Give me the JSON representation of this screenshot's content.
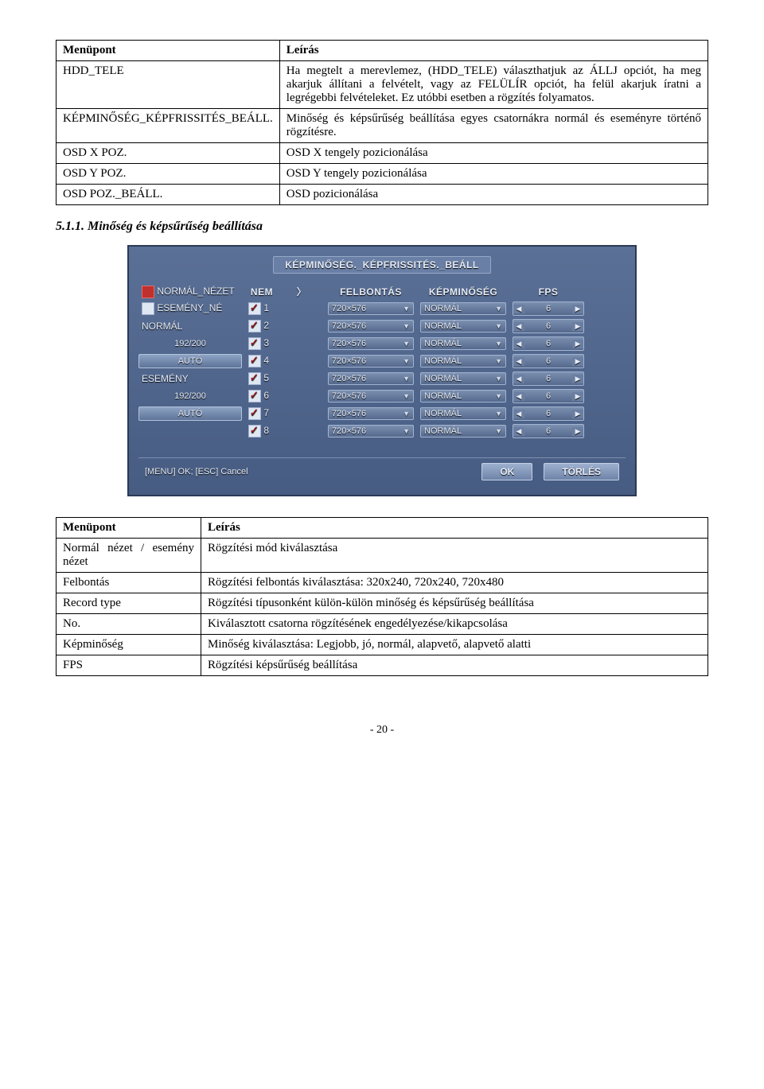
{
  "table1": {
    "headers": [
      "Menüpont",
      "Leírás"
    ],
    "rows": [
      [
        "HDD_TELE",
        "Ha megtelt a merevlemez, (HDD_TELE) választhatjuk az ÁLLJ opciót, ha meg akarjuk állítani a felvételt, vagy az FELÜLÍR opciót, ha felül akarjuk íratni a legrégebbi felvételeket. Ez utóbbi esetben a rögzítés folyamatos."
      ],
      [
        "KÉPMINŐSÉG_KÉPFRISSITÉS_BEÁLL.",
        "Minőség és képsűrűség beállítása egyes csatornákra normál és eseményre történő rögzítésre."
      ],
      [
        "OSD X POZ.",
        "OSD X tengely pozicionálása"
      ],
      [
        "OSD Y POZ.",
        "OSD Y tengely pozicionálása"
      ],
      [
        "OSD POZ._BEÁLL.",
        "OSD pozicionálása"
      ]
    ]
  },
  "section_heading": "5.1.1. Minőség és képsűrűség beállítása",
  "screenshot": {
    "title": "KÉPMINŐSÉG._KÉPFRISSITÉS._BEÁLL",
    "side": {
      "normal_view": "NORMÁL_NÉZET",
      "event_view": "ESEMÉNY_NÉ",
      "normal_label": "NORMÁL",
      "normal_count": "192/200",
      "auto1": "AUTÓ",
      "event_label": "ESEMÉNY",
      "event_count": "192/200",
      "auto2": "AUTÓ"
    },
    "headers": {
      "nem": "NEM",
      "felbontas": "FELBONTÁS",
      "kepminoseg": "KÉPMINŐSÉG",
      "fps": "FPS"
    },
    "rows": [
      {
        "n": "1",
        "res": "720×576",
        "q": "NORMÁL",
        "fps": "6"
      },
      {
        "n": "2",
        "res": "720×576",
        "q": "NORMÁL",
        "fps": "6"
      },
      {
        "n": "3",
        "res": "720×576",
        "q": "NORMÁL",
        "fps": "6"
      },
      {
        "n": "4",
        "res": "720×576",
        "q": "NORMÁL",
        "fps": "6"
      },
      {
        "n": "5",
        "res": "720×576",
        "q": "NORMÁL",
        "fps": "6"
      },
      {
        "n": "6",
        "res": "720×576",
        "q": "NORMÁL",
        "fps": "6"
      },
      {
        "n": "7",
        "res": "720×576",
        "q": "NORMÁL",
        "fps": "6"
      },
      {
        "n": "8",
        "res": "720×576",
        "q": "NORMÁL",
        "fps": "6"
      }
    ],
    "hint": "[MENU] OK; [ESC] Cancel",
    "ok": "OK",
    "cancel": "TÖRLÉS",
    "colors": {
      "panel_bg": "#506a92",
      "panel_border": "#2b3a55",
      "text": "#e6ecf6"
    }
  },
  "table2": {
    "headers": [
      "Menüpont",
      "Leírás"
    ],
    "rows": [
      [
        "Normál nézet / esemény nézet",
        "Rögzítési mód kiválasztása"
      ],
      [
        "Felbontás",
        "Rögzítési felbontás kiválasztása: 320x240, 720x240, 720x480"
      ],
      [
        "Record type",
        "Rögzítési típusonként külön-külön minőség és képsűrűség beállítása"
      ],
      [
        "No.",
        "Kiválasztott csatorna rögzítésének engedélyezése/kikapcsolása"
      ],
      [
        "Képminőség",
        "Minőség kiválasztása: Legjobb, jó, normál, alapvető, alapvető alatti"
      ],
      [
        "FPS",
        "Rögzítési képsűrűség beállítása"
      ]
    ]
  },
  "page_number": "- 20 -"
}
